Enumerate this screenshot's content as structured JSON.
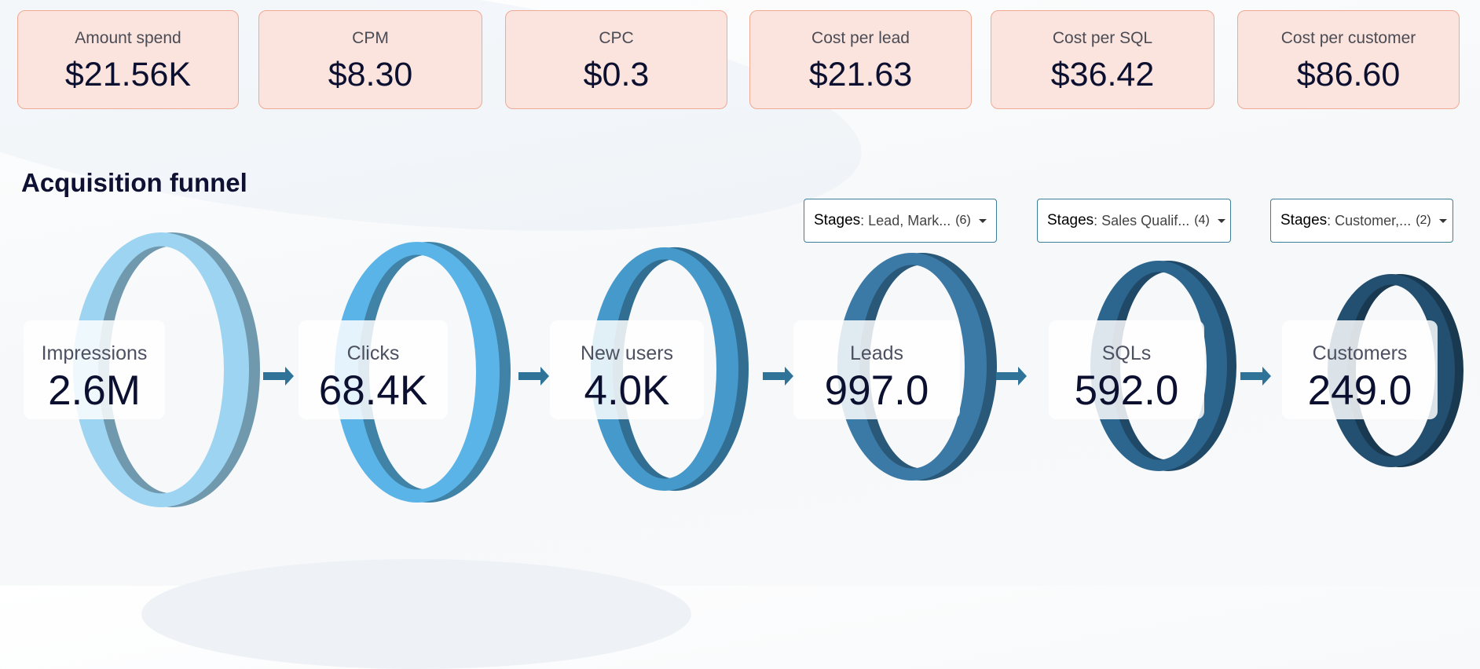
{
  "kpis": [
    {
      "label": "Amount spend",
      "value": "$21.56K"
    },
    {
      "label": "CPM",
      "value": "$8.30"
    },
    {
      "label": "CPC",
      "value": "$0.3"
    },
    {
      "label": "Cost per lead",
      "value": "$21.63"
    },
    {
      "label": "Cost per SQL",
      "value": "$36.42"
    },
    {
      "label": "Cost per customer",
      "value": "$86.60"
    }
  ],
  "funnel": {
    "title": "Acquisition funnel",
    "stages": [
      {
        "label": "Impressions",
        "value": "2.6M",
        "color": "#9cd4f2"
      },
      {
        "label": "Clicks",
        "value": "68.4K",
        "color": "#5ab4e8"
      },
      {
        "label": "New users",
        "value": "4.0K",
        "color": "#4699cb"
      },
      {
        "label": "Leads",
        "value": "997.0",
        "color": "#3b7aa6"
      },
      {
        "label": "SQLs",
        "value": "592.0",
        "color": "#2c668f"
      },
      {
        "label": "Customers",
        "value": "249.0",
        "color": "#234f70"
      }
    ],
    "filters": [
      {
        "key": "Stages",
        "value": ": Lead, Mark...",
        "count": "(6)"
      },
      {
        "key": "Stages",
        "value": ": Sales Qualif...",
        "count": "(4)"
      },
      {
        "key": "Stages",
        "value": ": Customer,...",
        "count": "(2)"
      }
    ]
  }
}
